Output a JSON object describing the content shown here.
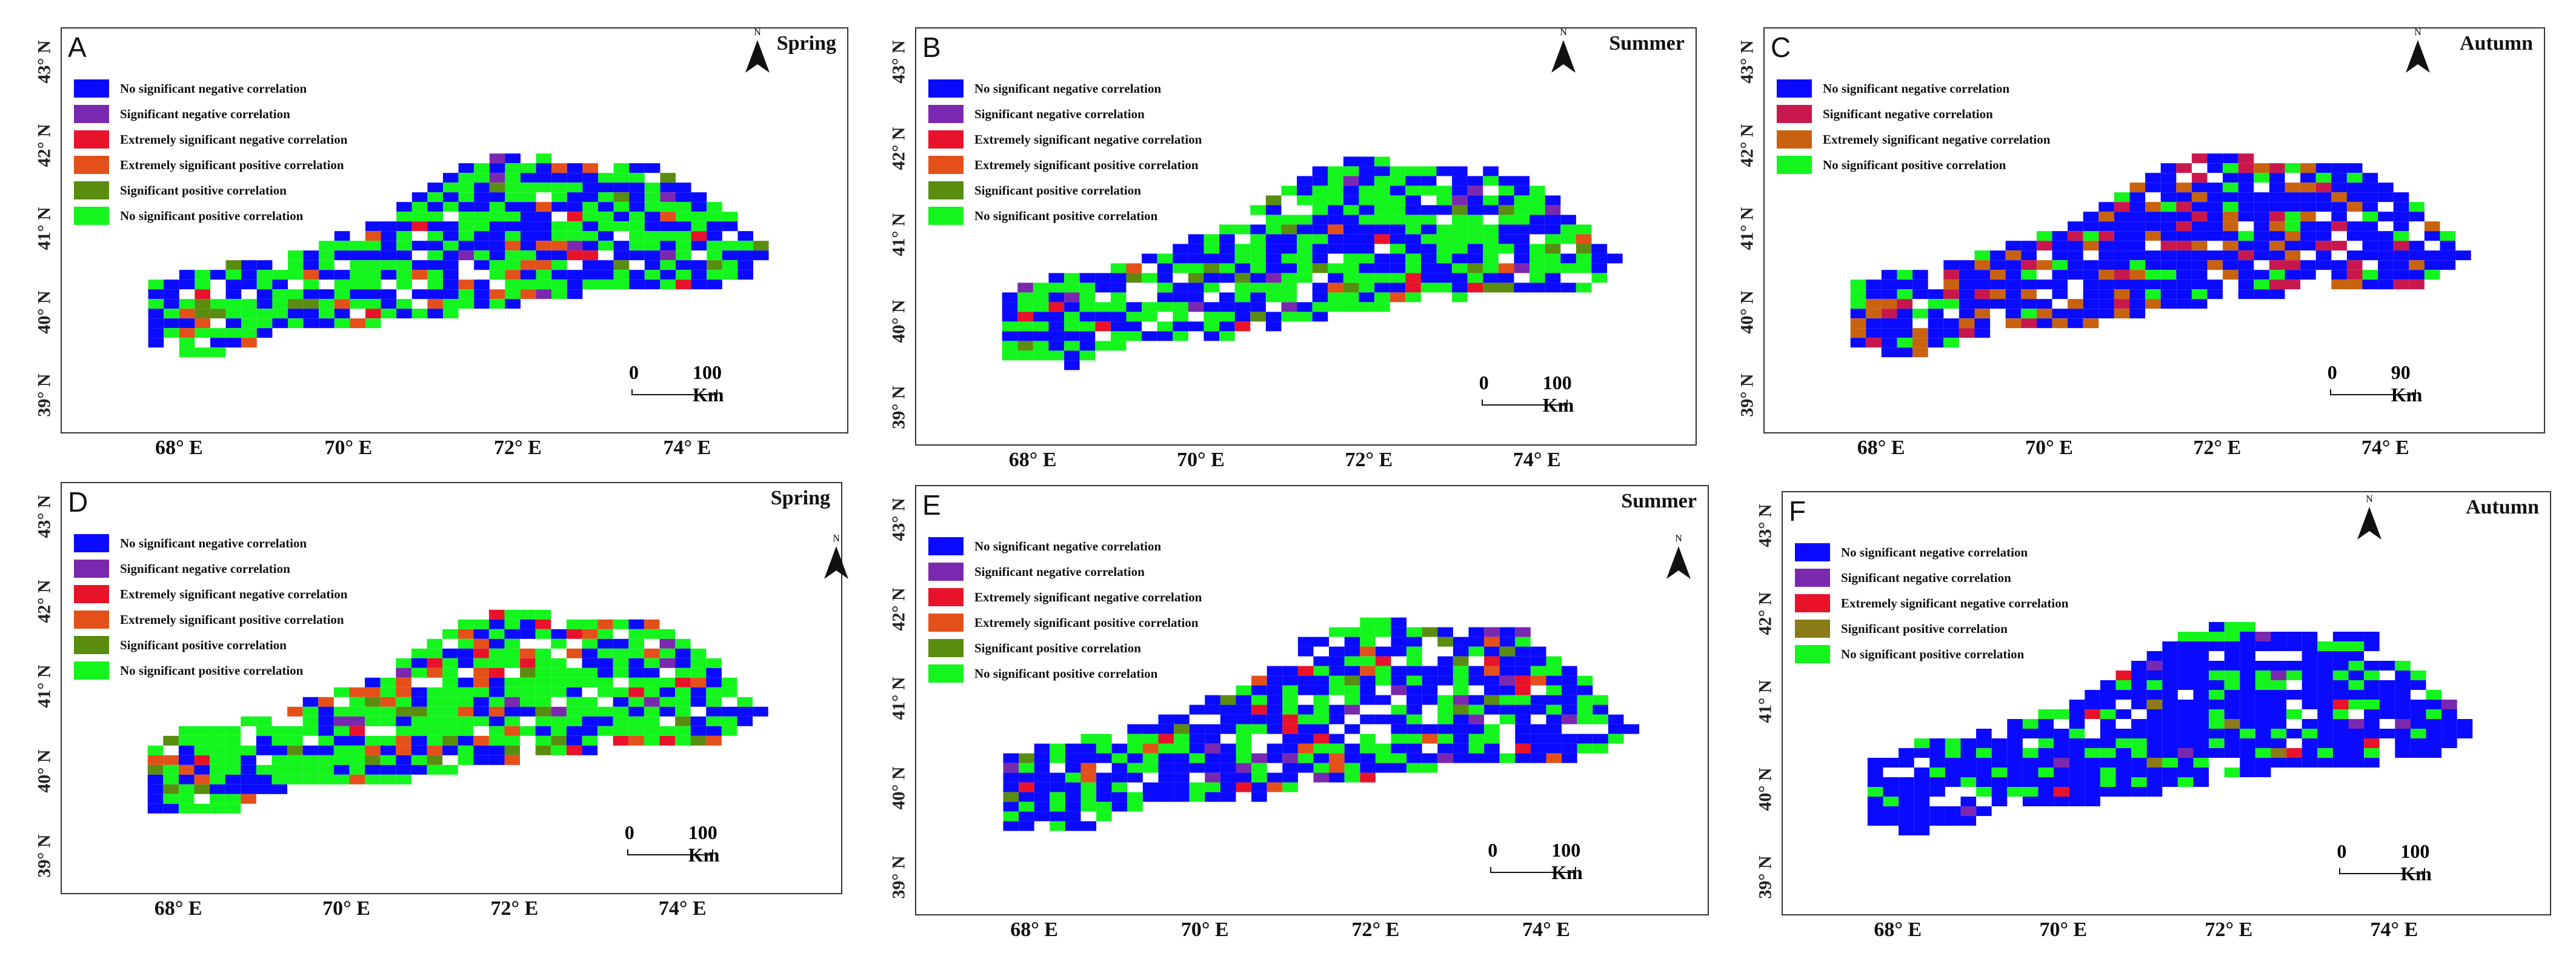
{
  "legend_colors": {
    "no_sig_neg": "#0a0aff",
    "sig_neg": "#7b28b0",
    "ext_sig_neg": "#e8132a",
    "ext_sig_pos": "#e4501a",
    "sig_pos": "#5a8c10",
    "no_sig_pos": "#14f51e",
    "sig_neg_magenta": "#c8174d",
    "ext_sig_brown": "#c8620e",
    "sig_pos_olive": "#8a7a18"
  },
  "panels": [
    {
      "letter": "A",
      "season": "Spring",
      "north": "N",
      "legend": [
        {
          "label": "No  significant negative correlation",
          "color": "#0a0aff"
        },
        {
          "label": "Significant negative correlation",
          "color": "#7b28b0"
        },
        {
          "label": "Extremely  significant negative  correlation",
          "color": "#e8132a"
        },
        {
          "label": "Extremely  significant positive correlation",
          "color": "#e4501a"
        },
        {
          "label": "Significant positive correlation",
          "color": "#5a8c10"
        },
        {
          "label": "No  significant positive correlation",
          "color": "#14f51e"
        }
      ],
      "scale": {
        "start": "0",
        "end": "100 Km"
      },
      "mix": [
        0.45,
        0.02,
        0.02,
        0.06,
        0.03,
        0.42
      ]
    },
    {
      "letter": "B",
      "season": "Summer",
      "north": "N",
      "legend": [
        {
          "label": "No  significant negative correlation",
          "color": "#0a0aff"
        },
        {
          "label": "Significant negative correlation",
          "color": "#7b28b0"
        },
        {
          "label": "Extremely  significant negative  correlation",
          "color": "#e8132a"
        },
        {
          "label": "Extremely  significant positive correlation",
          "color": "#e4501a"
        },
        {
          "label": "Significant positive correlation",
          "color": "#5a8c10"
        },
        {
          "label": "No  significant positive correlation",
          "color": "#14f51e"
        }
      ],
      "scale": {
        "start": "0",
        "end": "100 Km"
      },
      "mix": [
        0.42,
        0.02,
        0.03,
        0.02,
        0.05,
        0.46
      ]
    },
    {
      "letter": "C",
      "season": "Autumn",
      "north": "N",
      "legend": [
        {
          "label": "No  significant negative correlation",
          "color": "#0a0aff"
        },
        {
          "label": "Significant negative correlation",
          "color": "#c8174d"
        },
        {
          "label": "Extremely  significant negative  correlation",
          "color": "#c8620e"
        },
        {
          "label": "No  significant positive correlation",
          "color": "#14f51e"
        }
      ],
      "scale": {
        "start": "0",
        "end": "90 Km"
      },
      "mix": [
        0.66,
        0.12,
        0.14,
        0.08
      ]
    },
    {
      "letter": "D",
      "season": "Spring",
      "north": "N",
      "legend": [
        {
          "label": "No  significant negative correlation",
          "color": "#0a0aff"
        },
        {
          "label": "Significant negative correlation",
          "color": "#7b28b0"
        },
        {
          "label": "Extremely  significant negative  correlation",
          "color": "#e8132a"
        },
        {
          "label": "Extremely  significant positive correlation",
          "color": "#e4501a"
        },
        {
          "label": "Significant positive correlation",
          "color": "#5a8c10"
        },
        {
          "label": "No  significant positive correlation",
          "color": "#14f51e"
        }
      ],
      "scale": {
        "start": "0",
        "end": "100 Km"
      },
      "mix": [
        0.28,
        0.02,
        0.03,
        0.09,
        0.05,
        0.53
      ]
    },
    {
      "letter": "E",
      "season": "Summer",
      "north": "N",
      "legend": [
        {
          "label": "No  significant negative correlation",
          "color": "#0a0aff"
        },
        {
          "label": "Significant negative correlation",
          "color": "#7b28b0"
        },
        {
          "label": "Extremely  significant negative  correlation",
          "color": "#e8132a"
        },
        {
          "label": "Extremely  significant positive correlation",
          "color": "#e4501a"
        },
        {
          "label": "Significant positive correlation",
          "color": "#5a8c10"
        },
        {
          "label": "No  significant positive correlation",
          "color": "#14f51e"
        }
      ],
      "scale": {
        "start": "0",
        "end": "100 Km"
      },
      "mix": [
        0.58,
        0.04,
        0.04,
        0.03,
        0.03,
        0.28
      ]
    },
    {
      "letter": "F",
      "season": "Autumn",
      "north": "N",
      "legend": [
        {
          "label": "No  significant negative correlation",
          "color": "#0a0aff"
        },
        {
          "label": "Significant negative correlation",
          "color": "#7b28b0"
        },
        {
          "label": "Extremely  significant negative  correlation",
          "color": "#e8132a"
        },
        {
          "label": "Significant positive correlation",
          "color": "#8a7a18"
        },
        {
          "label": "No  significant positive correlation",
          "color": "#14f51e"
        }
      ],
      "scale": {
        "start": "0",
        "end": "100 Km"
      },
      "mix": [
        0.76,
        0.02,
        0.02,
        0.01,
        0.19
      ]
    }
  ],
  "lat_labels": [
    "43° N",
    "42° N",
    "41° N",
    "40° N",
    "39° N"
  ],
  "lon_labels": [
    "68° E",
    "70° E",
    "72° E",
    "74° E"
  ]
}
